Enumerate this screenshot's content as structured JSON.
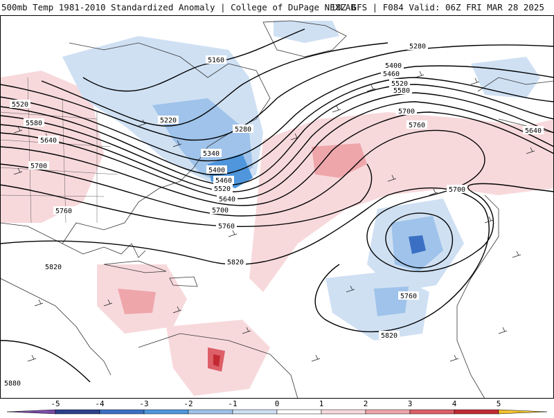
{
  "header": {
    "left": "500mb Temp 1981-2010 Standardized Anomaly | College of DuPage NEXLAB",
    "right": "18Z GFS | F084 Valid: 06Z FRI MAR 28 2025"
  },
  "contours": [
    {
      "value": "5160"
    },
    {
      "value": "5220"
    },
    {
      "value": "5280"
    },
    {
      "value": "5340"
    },
    {
      "value": "5400"
    },
    {
      "value": "5460"
    },
    {
      "value": "5520"
    },
    {
      "value": "5580"
    },
    {
      "value": "5640"
    },
    {
      "value": "5700"
    },
    {
      "value": "5760"
    },
    {
      "value": "5820"
    },
    {
      "value": "5880"
    }
  ],
  "colorbar": {
    "ticks": [
      "-5",
      "-4",
      "-3",
      "-2",
      "-1",
      "0",
      "1",
      "2",
      "3",
      "4",
      "5"
    ],
    "colors": [
      "#7a4aa8",
      "#2b3f8c",
      "#3a6fc4",
      "#4f96dc",
      "#9fc3ea",
      "#cfe0f3",
      "#ffffff",
      "#f7d9dc",
      "#eea6ab",
      "#dd5f68",
      "#c22a33",
      "#8e1622",
      "#f2c230"
    ]
  }
}
